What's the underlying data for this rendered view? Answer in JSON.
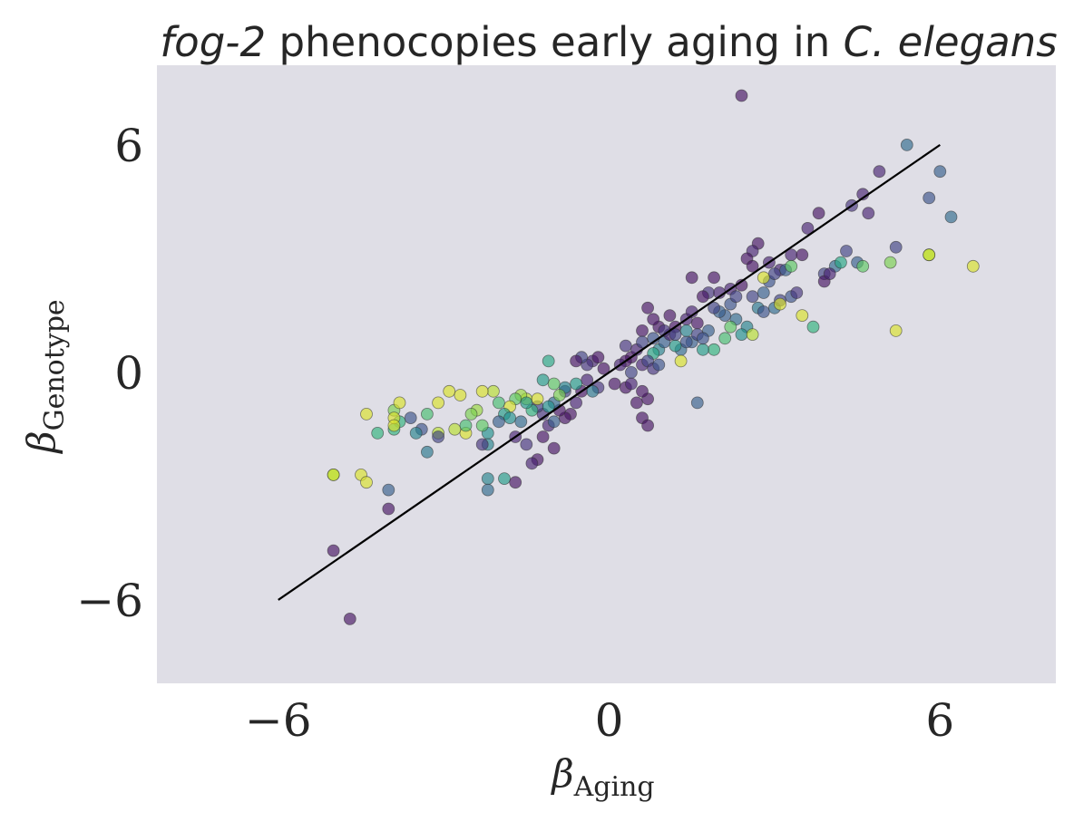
{
  "chart_data": {
    "type": "scatter",
    "title": {
      "gene": "fog-2",
      "middle": " phenocopies early aging in ",
      "species": "C. elegans"
    },
    "xlabel": {
      "symbol": "β",
      "sub": "Aging"
    },
    "ylabel": {
      "symbol": "β",
      "sub": "Genotype"
    },
    "xlim": [
      -8.2,
      8.1
    ],
    "ylim": [
      -8.2,
      8.1
    ],
    "xticks": [
      -6,
      0,
      6
    ],
    "yticks": [
      -6,
      0,
      6
    ],
    "xtick_labels": [
      "−6",
      "0",
      "6"
    ],
    "ytick_labels": [
      "−6",
      "0",
      "6"
    ],
    "grid": false,
    "background_color": "#dfdee6",
    "colormap": "viridis",
    "point_opacity": 0.65,
    "fit_line": {
      "x": [
        -6.0,
        6.0
      ],
      "y": [
        -6.0,
        6.0
      ],
      "color": "#000000"
    },
    "points": [
      [
        2.4,
        7.3,
        0.05
      ],
      [
        5.4,
        6.0,
        0.35
      ],
      [
        6.0,
        5.3,
        0.3
      ],
      [
        4.9,
        5.3,
        0.1
      ],
      [
        4.6,
        4.7,
        0.1
      ],
      [
        5.8,
        4.6,
        0.25
      ],
      [
        4.7,
        4.2,
        0.1
      ],
      [
        6.2,
        4.1,
        0.35
      ],
      [
        4.4,
        4.4,
        0.15
      ],
      [
        3.8,
        4.2,
        0.05
      ],
      [
        3.6,
        3.8,
        0.1
      ],
      [
        2.7,
        3.4,
        0.05
      ],
      [
        2.6,
        3.2,
        0.1
      ],
      [
        2.5,
        3.0,
        0.05
      ],
      [
        3.3,
        3.1,
        0.1
      ],
      [
        3.5,
        3.1,
        0.05
      ],
      [
        5.2,
        3.3,
        0.2
      ],
      [
        4.3,
        3.2,
        0.2
      ],
      [
        4.5,
        2.9,
        0.3
      ],
      [
        3.9,
        2.6,
        0.2
      ],
      [
        4.1,
        2.8,
        0.35
      ],
      [
        4.2,
        2.9,
        0.6
      ],
      [
        4.6,
        2.8,
        0.75
      ],
      [
        5.1,
        2.9,
        0.8
      ],
      [
        5.8,
        3.1,
        0.95
      ],
      [
        5.8,
        3.1,
        0.9
      ],
      [
        6.6,
        2.8,
        0.95
      ],
      [
        5.2,
        1.1,
        0.95
      ],
      [
        3.5,
        1.5,
        0.95
      ],
      [
        2.6,
        2.8,
        0.05
      ],
      [
        2.9,
        2.9,
        0.1
      ],
      [
        3.1,
        2.7,
        0.1
      ],
      [
        2.9,
        2.4,
        0.25
      ],
      [
        3.0,
        2.6,
        0.2
      ],
      [
        3.2,
        2.7,
        0.3
      ],
      [
        3.3,
        2.8,
        0.75
      ],
      [
        1.5,
        2.5,
        0.05
      ],
      [
        1.9,
        2.5,
        0.05
      ],
      [
        1.8,
        2.1,
        0.15
      ],
      [
        2.2,
        2.2,
        0.1
      ],
      [
        2.4,
        2.3,
        0.05
      ],
      [
        2.6,
        2.0,
        0.2
      ],
      [
        2.8,
        2.1,
        0.3
      ],
      [
        2.7,
        1.7,
        0.4
      ],
      [
        2.8,
        1.6,
        0.25
      ],
      [
        3.0,
        1.7,
        0.35
      ],
      [
        3.1,
        1.9,
        0.2
      ],
      [
        3.3,
        2.0,
        0.25
      ],
      [
        3.4,
        2.1,
        0.15
      ],
      [
        3.1,
        1.8,
        0.95
      ],
      [
        2.1,
        1.5,
        0.3
      ],
      [
        2.0,
        1.6,
        0.3
      ],
      [
        2.3,
        1.4,
        0.35
      ],
      [
        2.5,
        1.2,
        0.45
      ],
      [
        2.4,
        1.0,
        0.5
      ],
      [
        2.1,
        0.9,
        0.7
      ],
      [
        1.9,
        0.6,
        0.65
      ],
      [
        1.7,
        0.6,
        0.55
      ],
      [
        2.6,
        1.0,
        0.9
      ],
      [
        1.5,
        0.8,
        0.3
      ],
      [
        1.3,
        0.6,
        0.35
      ],
      [
        1.4,
        0.8,
        0.25
      ],
      [
        1.2,
        0.7,
        0.55
      ],
      [
        0.9,
        0.6,
        0.45
      ],
      [
        1.0,
        0.8,
        0.3
      ],
      [
        0.8,
        0.5,
        0.6
      ],
      [
        1.3,
        0.3,
        0.95
      ],
      [
        0.7,
        1.7,
        0.05
      ],
      [
        0.6,
        1.1,
        0.05
      ],
      [
        0.9,
        1.2,
        0.05
      ],
      [
        1.1,
        1.0,
        0.1
      ],
      [
        1.2,
        1.2,
        0.05
      ],
      [
        1.4,
        1.4,
        0.1
      ],
      [
        1.6,
        1.3,
        0.05
      ],
      [
        1.1,
        1.5,
        0.05
      ],
      [
        0.4,
        0.4,
        0.05
      ],
      [
        0.5,
        0.6,
        0.1
      ],
      [
        0.6,
        0.2,
        0.1
      ],
      [
        0.3,
        0.3,
        0.05
      ],
      [
        0.2,
        0.2,
        0.1
      ],
      [
        0.4,
        0.0,
        0.2
      ],
      [
        0.7,
        0.3,
        0.2
      ],
      [
        0.8,
        0.1,
        0.15
      ],
      [
        0.9,
        0.2,
        0.25
      ],
      [
        0.3,
        0.7,
        0.15
      ],
      [
        1.0,
        1.1,
        0.15
      ],
      [
        1.2,
        1.0,
        0.2
      ],
      [
        0.6,
        0.8,
        0.2
      ],
      [
        0.8,
        0.9,
        0.25
      ],
      [
        1.6,
        -0.8,
        0.3
      ],
      [
        0.3,
        -0.4,
        0.05
      ],
      [
        0.5,
        -0.8,
        0.05
      ],
      [
        0.6,
        -1.2,
        0.05
      ],
      [
        0.7,
        -1.4,
        0.05
      ],
      [
        0.7,
        -0.7,
        0.05
      ],
      [
        0.6,
        -0.5,
        0.05
      ],
      [
        0.4,
        -0.3,
        0.1
      ],
      [
        0.1,
        -0.3,
        0.05
      ],
      [
        -0.1,
        0.1,
        0.05
      ],
      [
        -0.3,
        0.3,
        0.1
      ],
      [
        -0.2,
        0.4,
        0.05
      ],
      [
        -0.4,
        0.2,
        0.15
      ],
      [
        -0.2,
        -0.4,
        0.15
      ],
      [
        -0.5,
        -0.5,
        0.05
      ],
      [
        -0.4,
        -0.2,
        0.1
      ],
      [
        -0.6,
        -0.8,
        0.1
      ],
      [
        -0.7,
        -1.1,
        0.05
      ],
      [
        -0.8,
        -1.2,
        0.05
      ],
      [
        -0.9,
        -1.0,
        0.05
      ],
      [
        -0.8,
        -0.5,
        0.2
      ],
      [
        -0.5,
        0.4,
        0.2
      ],
      [
        -0.6,
        0.3,
        0.05
      ],
      [
        -0.3,
        -0.5,
        0.4
      ],
      [
        -0.6,
        -0.3,
        0.55
      ],
      [
        -0.8,
        -0.4,
        0.45
      ],
      [
        -1.0,
        -0.8,
        0.35
      ],
      [
        -1.1,
        -1.4,
        0.1
      ],
      [
        -1.2,
        -1.1,
        0.15
      ],
      [
        -1.3,
        -0.9,
        0.2
      ],
      [
        -1.0,
        -0.3,
        0.75
      ],
      [
        -0.9,
        -0.6,
        0.8
      ],
      [
        -1.1,
        -0.9,
        0.5
      ],
      [
        -1.0,
        -1.3,
        0.3
      ],
      [
        -1.2,
        -1.7,
        0.05
      ],
      [
        -1.0,
        -2.0,
        0.05
      ],
      [
        -1.3,
        -2.3,
        0.05
      ],
      [
        -1.4,
        -2.4,
        0.1
      ],
      [
        -1.5,
        -1.9,
        0.15
      ],
      [
        -1.7,
        -1.7,
        0.1
      ],
      [
        -1.2,
        -0.2,
        0.55
      ],
      [
        -1.1,
        0.3,
        0.6
      ],
      [
        -1.5,
        -0.7,
        0.9
      ],
      [
        -1.6,
        -0.6,
        0.85
      ],
      [
        -1.7,
        -0.7,
        0.75
      ],
      [
        -1.8,
        -0.9,
        0.95
      ],
      [
        -1.9,
        -1.1,
        0.55
      ],
      [
        -2.0,
        -0.8,
        0.7
      ],
      [
        -2.1,
        -0.5,
        0.9
      ],
      [
        -2.3,
        -0.5,
        0.95
      ],
      [
        -1.8,
        -1.2,
        0.5
      ],
      [
        -1.6,
        -1.3,
        0.35
      ],
      [
        -1.4,
        -1.0,
        0.65
      ],
      [
        -1.3,
        -0.7,
        0.95
      ],
      [
        -1.5,
        -0.8,
        0.55
      ],
      [
        -2.0,
        -1.3,
        0.3
      ],
      [
        -2.2,
        -1.6,
        0.5
      ],
      [
        -2.3,
        -1.4,
        0.75
      ],
      [
        -2.4,
        -1.0,
        0.85
      ],
      [
        -2.5,
        -1.1,
        0.8
      ],
      [
        -2.2,
        -1.9,
        0.45
      ],
      [
        -2.2,
        -2.8,
        0.45
      ],
      [
        -2.2,
        -3.1,
        0.35
      ],
      [
        -1.9,
        -2.8,
        0.55
      ],
      [
        -1.7,
        -2.9,
        0.05
      ],
      [
        -2.3,
        -1.9,
        0.15
      ],
      [
        -2.6,
        -1.6,
        0.95
      ],
      [
        -2.6,
        -1.4,
        0.7
      ],
      [
        -2.8,
        -1.5,
        0.9
      ],
      [
        -3.1,
        -1.6,
        0.9
      ],
      [
        -2.9,
        -0.5,
        0.95
      ],
      [
        -2.7,
        -0.6,
        0.95
      ],
      [
        -3.1,
        -1.7,
        0.2
      ],
      [
        -3.3,
        -2.1,
        0.4
      ],
      [
        -3.4,
        -1.5,
        0.25
      ],
      [
        -3.5,
        -1.6,
        0.45
      ],
      [
        -3.6,
        -1.2,
        0.25
      ],
      [
        -3.8,
        -1.3,
        0.65
      ],
      [
        -3.9,
        -1.0,
        0.8
      ],
      [
        -3.8,
        -0.8,
        0.95
      ],
      [
        -3.9,
        -1.5,
        0.65
      ],
      [
        -3.9,
        -1.2,
        0.95
      ],
      [
        -3.9,
        -1.4,
        0.95
      ],
      [
        -3.3,
        -1.1,
        0.7
      ],
      [
        -3.1,
        -0.8,
        0.95
      ],
      [
        -4.2,
        -1.6,
        0.65
      ],
      [
        -4.4,
        -1.1,
        0.95
      ],
      [
        -4.5,
        -2.7,
        0.95
      ],
      [
        -4.4,
        -2.9,
        0.95
      ],
      [
        -5.0,
        -2.7,
        0.95
      ],
      [
        -5.0,
        -2.7,
        0.9
      ],
      [
        -4.0,
        -3.1,
        0.3
      ],
      [
        -4.0,
        -3.6,
        0.05
      ],
      [
        -5.0,
        -4.7,
        0.05
      ],
      [
        -4.7,
        -6.5,
        0.05
      ],
      [
        3.7,
        1.2,
        0.65
      ],
      [
        2.8,
        2.5,
        0.95
      ],
      [
        3.9,
        2.4,
        0.05
      ],
      [
        4.0,
        2.6,
        0.1
      ],
      [
        1.7,
        2.0,
        0.05
      ],
      [
        1.9,
        1.7,
        0.2
      ],
      [
        1.6,
        1.0,
        0.2
      ],
      [
        1.5,
        1.6,
        0.1
      ],
      [
        0.8,
        1.4,
        0.05
      ],
      [
        2.2,
        1.8,
        0.25
      ],
      [
        2.3,
        2.0,
        0.2
      ],
      [
        2.0,
        2.1,
        0.1
      ],
      [
        2.2,
        1.2,
        0.75
      ],
      [
        1.8,
        1.1,
        0.3
      ],
      [
        1.4,
        1.1,
        0.45
      ],
      [
        1.7,
        0.9,
        0.25
      ]
    ]
  }
}
